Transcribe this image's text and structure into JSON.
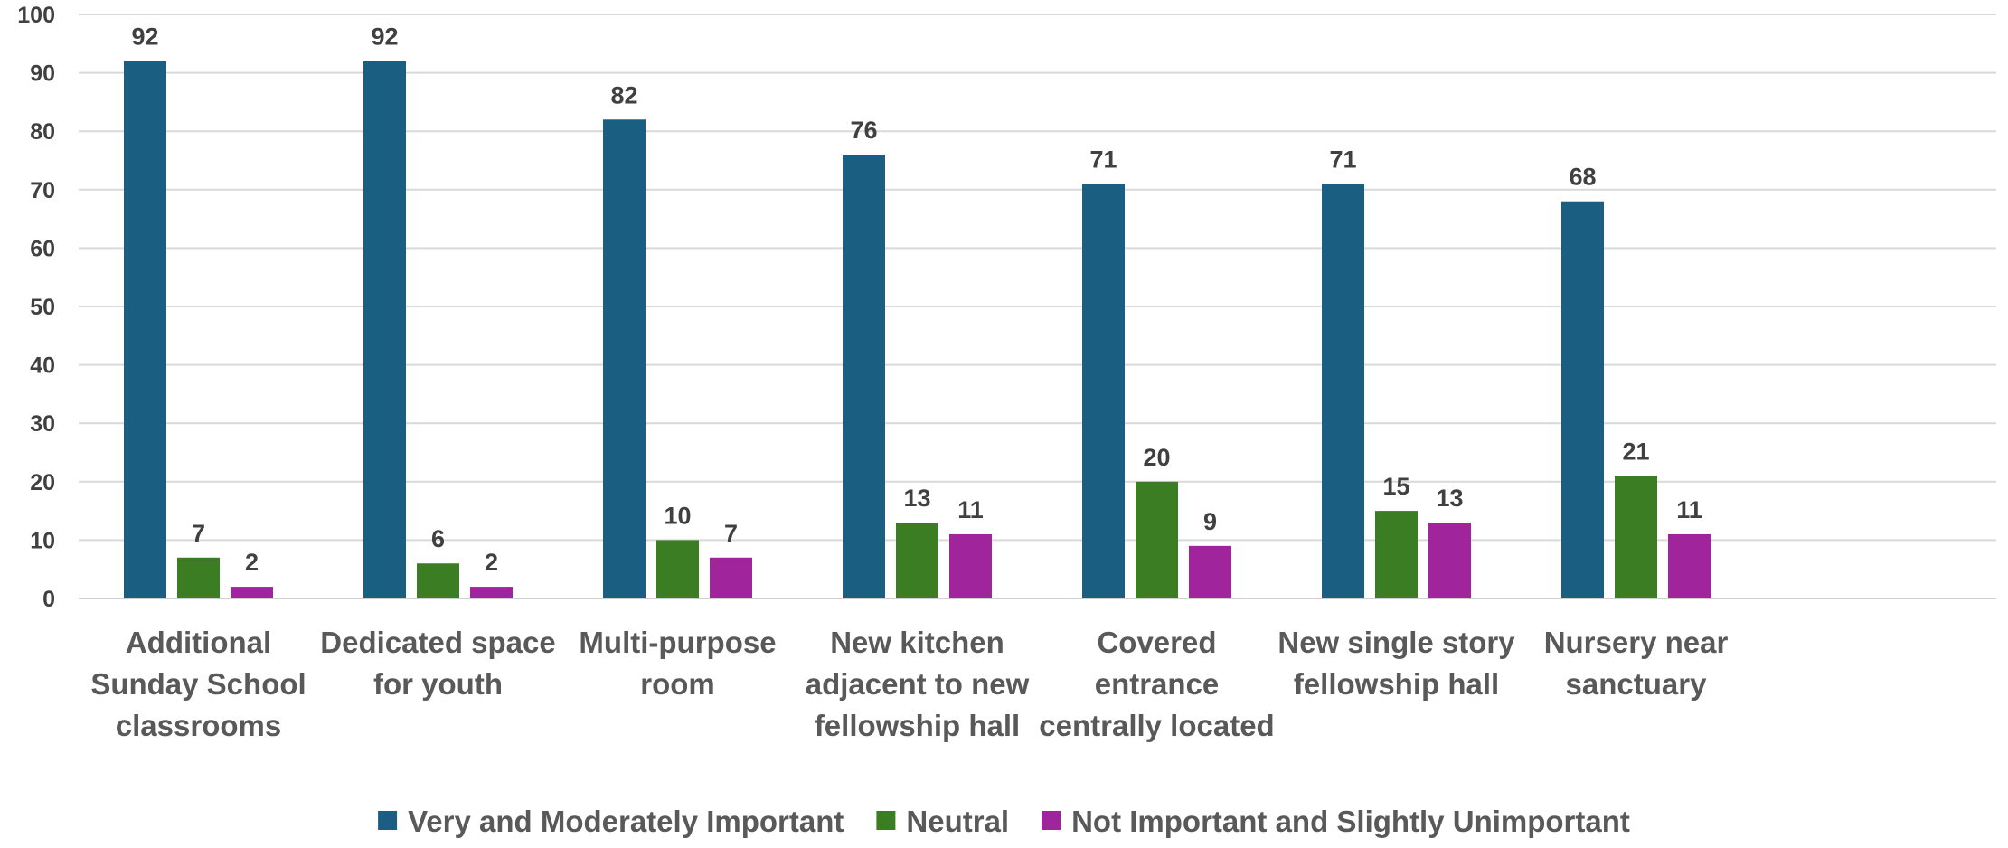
{
  "chart_data": {
    "type": "bar",
    "categories": [
      [
        "Additional",
        "Sunday School",
        "classrooms"
      ],
      [
        "Dedicated space",
        "for youth"
      ],
      [
        "Multi-purpose",
        "room"
      ],
      [
        "New kitchen",
        "adjacent to new",
        "fellowship hall"
      ],
      [
        "Covered",
        "entrance",
        "centrally located"
      ],
      [
        "New single story",
        "fellowship hall"
      ],
      [
        "Nursery near",
        "sanctuary"
      ]
    ],
    "series": [
      {
        "name": "Very and Moderately Important",
        "color": "#1a5f82",
        "values": [
          92,
          92,
          82,
          76,
          71,
          71,
          68
        ]
      },
      {
        "name": "Neutral",
        "color": "#3b7d23",
        "values": [
          7,
          6,
          10,
          13,
          20,
          15,
          21
        ]
      },
      {
        "name": "Not Important and Slightly Unimportant",
        "color": "#a0249b",
        "values": [
          2,
          2,
          7,
          11,
          9,
          13,
          11
        ]
      }
    ],
    "ylim": [
      0,
      100
    ],
    "yticks": [
      0,
      10,
      20,
      30,
      40,
      50,
      60,
      70,
      80,
      90,
      100
    ],
    "grid": true,
    "legend_position": "bottom",
    "title": "",
    "xlabel": "",
    "ylabel": ""
  }
}
